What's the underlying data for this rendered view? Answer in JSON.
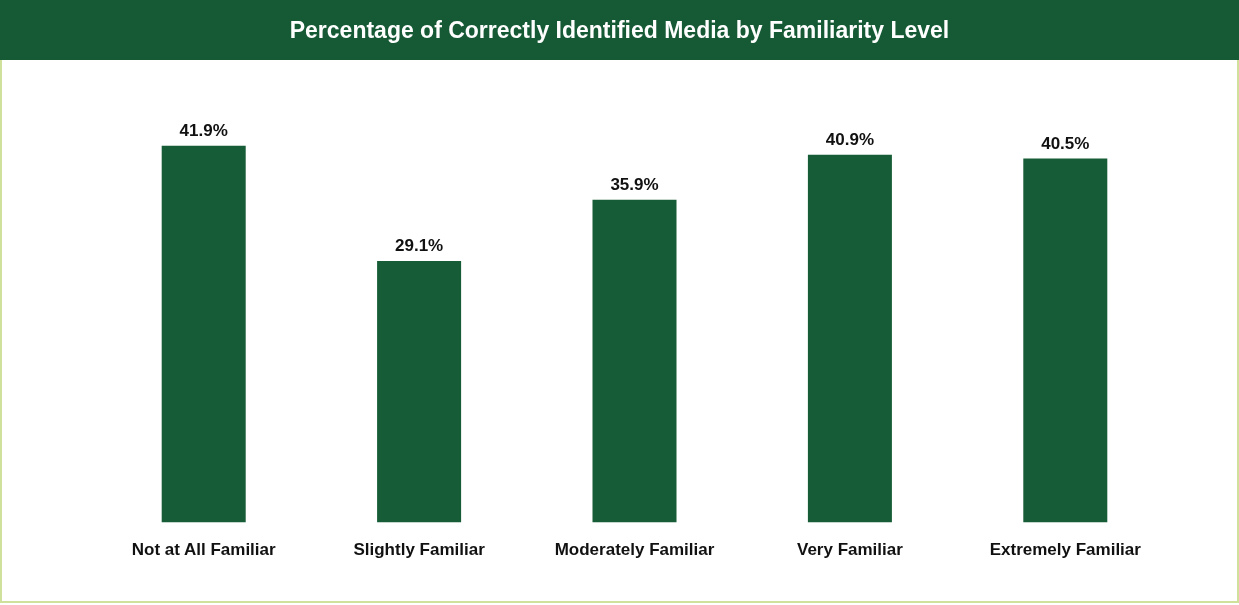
{
  "chart_data": {
    "type": "bar",
    "title": "Percentage of Correctly Identified Media by Familiarity Level",
    "categories": [
      "Not at All Familiar",
      "Slightly Familiar",
      "Moderately Familiar",
      "Very Familiar",
      "Extremely Familiar"
    ],
    "values": [
      41.9,
      29.1,
      35.9,
      40.9,
      40.5
    ],
    "value_labels": [
      "41.9%",
      "29.1%",
      "35.9%",
      "40.9%",
      "40.5%"
    ],
    "color": "#165c36",
    "grid": false,
    "legend": false
  }
}
